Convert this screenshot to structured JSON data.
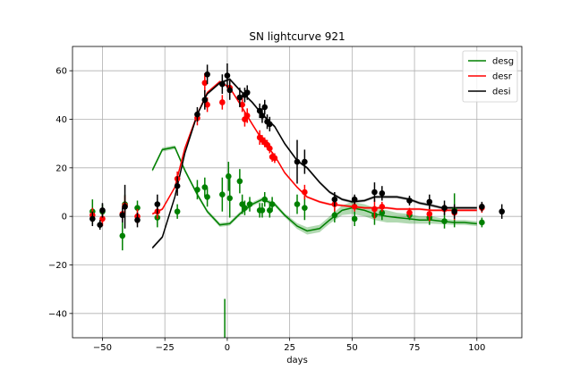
{
  "chart_data": {
    "type": "scatter",
    "title": "SN lightcurve 921",
    "xlabel": "days",
    "ylabel": "",
    "xlim": [
      -62,
      118
    ],
    "ylim": [
      -50,
      70
    ],
    "xticks": [
      -50,
      -25,
      0,
      25,
      50,
      75,
      100
    ],
    "yticks": [
      -40,
      -20,
      0,
      20,
      40,
      60
    ],
    "grid": true,
    "legend_position": "top-right",
    "series": [
      {
        "name": "desg",
        "color": "#008000",
        "model": {
          "x": [
            -30,
            -26,
            -21,
            -17,
            -12,
            -8,
            -3,
            1,
            5,
            10,
            14,
            19,
            23,
            28,
            32,
            37,
            41,
            46,
            50,
            55,
            59,
            64,
            68,
            73,
            77,
            82,
            86,
            91,
            95,
            100
          ],
          "y": [
            19,
            27.5,
            28.5,
            19,
            9,
            2,
            -3.5,
            -3,
            1,
            5,
            7,
            5,
            0.5,
            -4,
            -6,
            -5,
            -1.5,
            2.5,
            3.5,
            2.5,
            1,
            0,
            -0.5,
            -1,
            -1.5,
            -1.5,
            -2,
            -2.5,
            -2.5,
            -3
          ],
          "band": [
            0.8,
            0.8,
            0.8,
            0.8,
            0.8,
            0.8,
            0.8,
            0.8,
            0.8,
            0.8,
            0.8,
            0.8,
            0.8,
            1.2,
            1.5,
            1.5,
            1.5,
            2,
            2.5,
            2.5,
            2.5,
            2.5,
            2,
            2,
            1.5,
            1.5,
            1.2,
            1,
            1,
            1
          ]
        },
        "points": [
          {
            "x": -54,
            "y": 2,
            "err": 5
          },
          {
            "x": -50,
            "y": 2,
            "err": 3
          },
          {
            "x": -42,
            "y": -8,
            "err": 6
          },
          {
            "x": -41,
            "y": 5,
            "err": 4
          },
          {
            "x": -36,
            "y": 3.5,
            "err": 3
          },
          {
            "x": -28,
            "y": -0.5,
            "err": 4
          },
          {
            "x": -20,
            "y": 2,
            "err": 3
          },
          {
            "x": -12,
            "y": 11,
            "err": 4
          },
          {
            "x": -9,
            "y": 12,
            "err": 4
          },
          {
            "x": -8,
            "y": 8,
            "err": 4
          },
          {
            "x": -2,
            "y": 9,
            "err": 7
          },
          {
            "x": 0.5,
            "y": 16.5,
            "err": 6
          },
          {
            "x": 1,
            "y": 7.5,
            "err": 8
          },
          {
            "x": 5,
            "y": 14.5,
            "err": 5
          },
          {
            "x": 6,
            "y": 5,
            "err": 4
          },
          {
            "x": 7,
            "y": 3.5,
            "err": 3
          },
          {
            "x": 9,
            "y": 5,
            "err": 3
          },
          {
            "x": 13,
            "y": 2.5,
            "err": 3
          },
          {
            "x": 14,
            "y": 2.5,
            "err": 3
          },
          {
            "x": 15,
            "y": 7,
            "err": 3
          },
          {
            "x": 17,
            "y": 2.5,
            "err": 3
          },
          {
            "x": 18,
            "y": 5,
            "err": 3
          },
          {
            "x": 28,
            "y": 5,
            "err": 4
          },
          {
            "x": 31,
            "y": 3.5,
            "err": 5
          },
          {
            "x": 43,
            "y": 0.5,
            "err": 3
          },
          {
            "x": 51,
            "y": -1,
            "err": 3
          },
          {
            "x": 59,
            "y": 0.5,
            "err": 4
          },
          {
            "x": 62,
            "y": 1.5,
            "err": 3
          },
          {
            "x": 73,
            "y": 0.5,
            "err": 2
          },
          {
            "x": 81,
            "y": -0.5,
            "err": 3
          },
          {
            "x": 87,
            "y": -2,
            "err": 3
          },
          {
            "x": 91,
            "y": 2.5,
            "err": 7
          },
          {
            "x": 102,
            "y": -2.5,
            "err": 2
          }
        ]
      },
      {
        "name": "desr",
        "color": "#ff0000",
        "model": {
          "x": [
            -30,
            -26,
            -21,
            -17,
            -12,
            -8,
            -3,
            1,
            5,
            10,
            14,
            19,
            23,
            28,
            32,
            37,
            41,
            46,
            50,
            55,
            59,
            64,
            68,
            73,
            77,
            82,
            86,
            91,
            95,
            100
          ],
          "y": [
            1,
            3,
            12,
            28,
            42,
            51,
            55.5,
            53,
            46.5,
            38,
            31.5,
            25,
            18,
            12,
            8,
            6,
            5,
            4.5,
            4,
            3.5,
            3.5,
            3.5,
            3,
            3,
            3,
            2.5,
            2.5,
            2.5,
            2.5,
            2.5
          ],
          "band": [
            0.5,
            0.5,
            0.5,
            0.5,
            0.5,
            0.5,
            0.5,
            0.5,
            0.5,
            0.5,
            0.5,
            0.5,
            0.5,
            0.5,
            0.5,
            0.5,
            0.5,
            0.5,
            0.5,
            0.5,
            0.5,
            0.5,
            0.5,
            0.5,
            0.5,
            0.5,
            0.5,
            0.5,
            0.5,
            0.5
          ]
        },
        "points": [
          {
            "x": -54,
            "y": 0.5,
            "err": 3
          },
          {
            "x": -50,
            "y": -1,
            "err": 3
          },
          {
            "x": -42,
            "y": 1,
            "err": 3
          },
          {
            "x": -41,
            "y": 4.5,
            "err": 4
          },
          {
            "x": -36,
            "y": 0,
            "err": 3
          },
          {
            "x": -28,
            "y": 2,
            "err": 3
          },
          {
            "x": -20,
            "y": 15.5,
            "err": 3
          },
          {
            "x": -12,
            "y": 40.5,
            "err": 3
          },
          {
            "x": -9,
            "y": 55,
            "err": 4
          },
          {
            "x": -8,
            "y": 46,
            "err": 3
          },
          {
            "x": -2,
            "y": 47,
            "err": 3
          },
          {
            "x": 1,
            "y": 53,
            "err": 3
          },
          {
            "x": 6,
            "y": 46,
            "err": 3
          },
          {
            "x": 7,
            "y": 40,
            "err": 3
          },
          {
            "x": 8,
            "y": 41.5,
            "err": 3
          },
          {
            "x": 13,
            "y": 32.5,
            "err": 3
          },
          {
            "x": 14,
            "y": 31.5,
            "err": 2
          },
          {
            "x": 15,
            "y": 30.5,
            "err": 2
          },
          {
            "x": 16,
            "y": 29.5,
            "err": 2
          },
          {
            "x": 17,
            "y": 28,
            "err": 2
          },
          {
            "x": 18,
            "y": 24.5,
            "err": 2
          },
          {
            "x": 19,
            "y": 24,
            "err": 2
          },
          {
            "x": 31,
            "y": 10,
            "err": 3
          },
          {
            "x": 43,
            "y": 5,
            "err": 3
          },
          {
            "x": 51,
            "y": 4,
            "err": 2
          },
          {
            "x": 59,
            "y": 3,
            "err": 4
          },
          {
            "x": 62,
            "y": 4,
            "err": 2
          },
          {
            "x": 73,
            "y": 1.5,
            "err": 2
          },
          {
            "x": 81,
            "y": 1,
            "err": 3
          },
          {
            "x": 87,
            "y": 3,
            "err": 2
          },
          {
            "x": 91,
            "y": 1.5,
            "err": 3
          },
          {
            "x": 102,
            "y": 3.5,
            "err": 2
          }
        ]
      },
      {
        "name": "desi",
        "color": "#000000",
        "model": {
          "x": [
            -30,
            -26,
            -21,
            -17,
            -12,
            -8,
            -3,
            1,
            5,
            10,
            14,
            19,
            23,
            28,
            32,
            37,
            41,
            46,
            50,
            55,
            59,
            64,
            68,
            73,
            77,
            82,
            86,
            91,
            95,
            100
          ],
          "y": [
            -13,
            -8.5,
            8,
            26,
            42,
            50.5,
            55,
            56.5,
            52,
            47,
            42,
            37,
            30,
            23,
            20,
            14,
            10,
            7,
            6,
            6.5,
            8,
            8,
            8,
            7,
            5.5,
            4.5,
            3.5,
            3.5,
            3.5,
            3.5
          ],
          "band": [
            0.6,
            0.6,
            0.6,
            0.6,
            0.6,
            0.6,
            0.6,
            0.6,
            0.6,
            0.6,
            0.6,
            0.6,
            0.6,
            0.6,
            0.6,
            0.6,
            0.6,
            0.6,
            0.6,
            0.6,
            0.6,
            0.6,
            0.6,
            0.6,
            0.6,
            0.6,
            0.6,
            0.6,
            0.6,
            0.6
          ]
        },
        "points": [
          {
            "x": -54,
            "y": -1,
            "err": 3
          },
          {
            "x": -51,
            "y": -3.5,
            "err": 2
          },
          {
            "x": -50,
            "y": 2.5,
            "err": 3
          },
          {
            "x": -42,
            "y": 0.5,
            "err": 3
          },
          {
            "x": -41,
            "y": 4,
            "err": 9
          },
          {
            "x": -36,
            "y": -1.5,
            "err": 3
          },
          {
            "x": -28,
            "y": 5,
            "err": 4
          },
          {
            "x": -20,
            "y": 12.5,
            "err": 4
          },
          {
            "x": -12,
            "y": 42,
            "err": 3
          },
          {
            "x": -9,
            "y": 48,
            "err": 4
          },
          {
            "x": -8,
            "y": 58.5,
            "err": 4
          },
          {
            "x": -2,
            "y": 54.5,
            "err": 4
          },
          {
            "x": 0,
            "y": 58,
            "err": 5
          },
          {
            "x": 1,
            "y": 52,
            "err": 4
          },
          {
            "x": 5,
            "y": 49,
            "err": 4
          },
          {
            "x": 7,
            "y": 50,
            "err": 3
          },
          {
            "x": 8,
            "y": 51,
            "err": 3
          },
          {
            "x": 13,
            "y": 43.5,
            "err": 3
          },
          {
            "x": 14,
            "y": 41.5,
            "err": 3
          },
          {
            "x": 15,
            "y": 45,
            "err": 3
          },
          {
            "x": 16,
            "y": 39,
            "err": 3
          },
          {
            "x": 17,
            "y": 38,
            "err": 3
          },
          {
            "x": 28,
            "y": 22.5,
            "err": 9
          },
          {
            "x": 31,
            "y": 22.5,
            "err": 5
          },
          {
            "x": 43,
            "y": 7,
            "err": 3
          },
          {
            "x": 51,
            "y": 7,
            "err": 2
          },
          {
            "x": 59,
            "y": 10,
            "err": 4
          },
          {
            "x": 62,
            "y": 9.5,
            "err": 3
          },
          {
            "x": 73,
            "y": 6.5,
            "err": 2
          },
          {
            "x": 81,
            "y": 6,
            "err": 3
          },
          {
            "x": 87,
            "y": 3.5,
            "err": 3
          },
          {
            "x": 91,
            "y": 2,
            "err": 3
          },
          {
            "x": 102,
            "y": 4,
            "err": 2
          },
          {
            "x": 110,
            "y": 2,
            "err": 3
          }
        ]
      }
    ],
    "extra_marks": [
      {
        "series": "desg",
        "kind": "errorbar-only",
        "x": -1,
        "y": -49,
        "err": 15
      }
    ]
  }
}
